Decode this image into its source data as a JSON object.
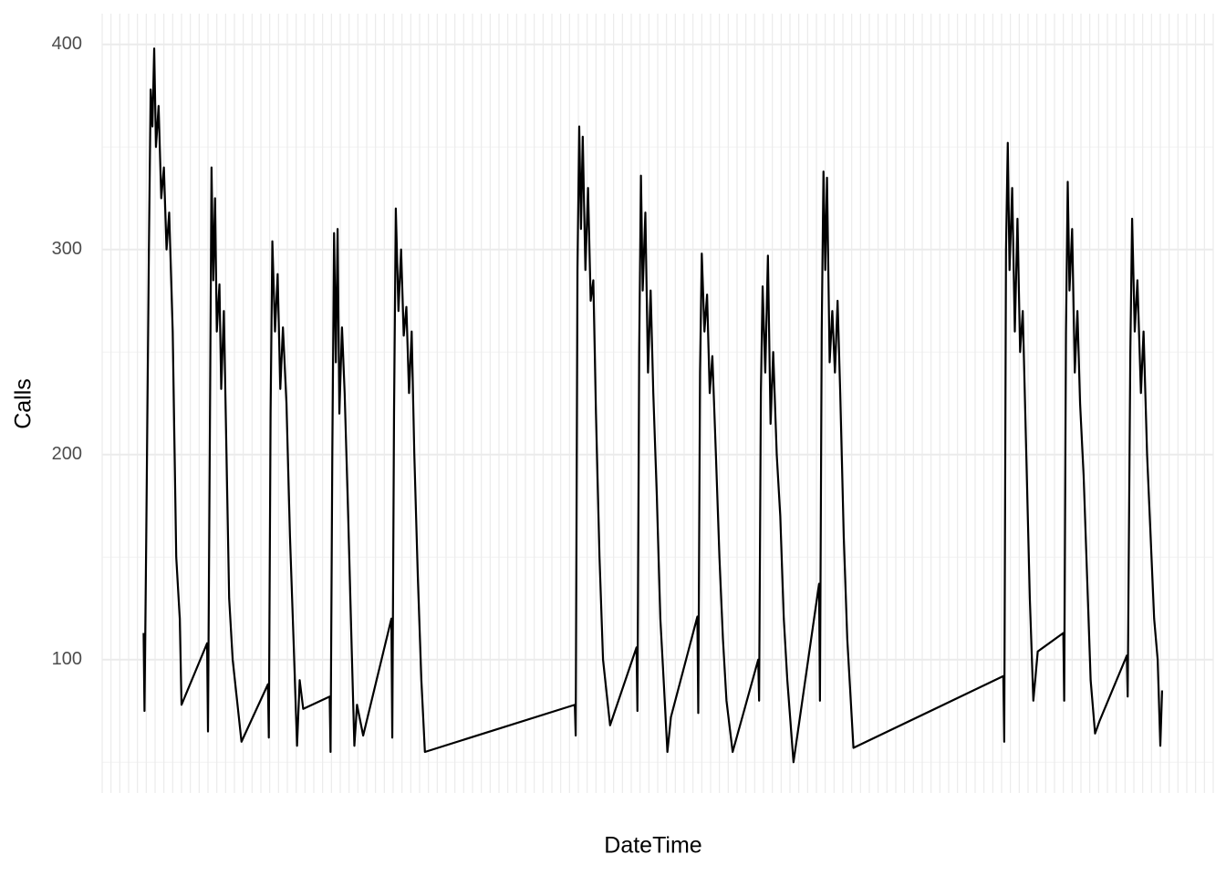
{
  "chart_data": {
    "type": "line",
    "xlabel": "DateTime",
    "ylabel": "Calls",
    "x": [
      4.7,
      4.8,
      5.0,
      5.3,
      5.5,
      5.7,
      5.9,
      6.1,
      6.4,
      6.7,
      7.0,
      7.3,
      7.6,
      8.0,
      8.4,
      8.8,
      9.0,
      11.9,
      12.0,
      12.2,
      12.4,
      12.6,
      12.8,
      13.0,
      13.3,
      13.5,
      13.8,
      14.1,
      14.4,
      14.8,
      15.8,
      18.8,
      18.9,
      19.1,
      19.3,
      19.6,
      19.9,
      20.2,
      20.5,
      20.9,
      21.3,
      21.7,
      22.1,
      22.4,
      22.8,
      25.8,
      25.9,
      26.1,
      26.3,
      26.5,
      26.7,
      26.9,
      27.2,
      27.5,
      27.9,
      28.3,
      28.6,
      28.9,
      29.6,
      32.8,
      32.9,
      33.1,
      33.3,
      33.6,
      33.9,
      34.2,
      34.5,
      34.8,
      35.1,
      35.4,
      35.8,
      36.2,
      36.6,
      53.6,
      53.7,
      53.9,
      54.1,
      54.3,
      54.5,
      54.8,
      55.1,
      55.4,
      55.7,
      56.0,
      56.4,
      56.8,
      57.6,
      60.6,
      60.7,
      60.9,
      61.1,
      61.3,
      61.6,
      61.9,
      62.2,
      62.5,
      62.9,
      63.3,
      63.7,
      64.1,
      64.5,
      67.5,
      67.6,
      67.8,
      68.0,
      68.3,
      68.6,
      68.9,
      69.2,
      69.6,
      70.0,
      70.4,
      70.8,
      71.5,
      74.4,
      74.5,
      74.7,
      74.9,
      75.2,
      75.5,
      75.8,
      76.1,
      76.5,
      76.9,
      77.3,
      77.7,
      78.4,
      81.3,
      81.4,
      81.6,
      81.8,
      82.0,
      82.2,
      82.5,
      82.8,
      83.1,
      83.4,
      83.7,
      84.1,
      84.5,
      85.2,
      102.2,
      102.3,
      102.5,
      102.7,
      102.9,
      103.2,
      103.5,
      103.8,
      104.1,
      104.4,
      104.8,
      105.2,
      105.6,
      106.1,
      109.0,
      109.1,
      109.3,
      109.5,
      109.7,
      110.0,
      110.3,
      110.6,
      110.9,
      111.3,
      111.7,
      112.1,
      112.6,
      113.1,
      116.2,
      116.3,
      116.6,
      116.8,
      117.1,
      117.4,
      117.8,
      118.1,
      118.5,
      118.9,
      119.3,
      119.7,
      120.0,
      120.2
    ],
    "values": [
      113,
      75,
      160,
      300,
      378,
      360,
      398,
      350,
      370,
      325,
      340,
      300,
      318,
      260,
      150,
      120,
      78,
      108,
      65,
      200,
      340,
      285,
      325,
      260,
      283,
      232,
      270,
      200,
      130,
      100,
      60,
      88,
      62,
      220,
      304,
      260,
      288,
      232,
      262,
      225,
      160,
      110,
      58,
      90,
      76,
      82,
      55,
      200,
      308,
      245,
      310,
      220,
      262,
      230,
      170,
      105,
      58,
      78,
      63,
      120,
      62,
      220,
      320,
      270,
      300,
      258,
      272,
      230,
      260,
      200,
      140,
      90,
      55,
      78,
      63,
      290,
      360,
      310,
      355,
      290,
      330,
      275,
      285,
      220,
      150,
      100,
      68,
      106,
      75,
      250,
      336,
      280,
      318,
      240,
      280,
      230,
      180,
      120,
      88,
      55,
      72,
      121,
      74,
      240,
      298,
      260,
      278,
      230,
      248,
      200,
      150,
      110,
      80,
      55,
      100,
      80,
      230,
      282,
      240,
      297,
      215,
      250,
      200,
      170,
      120,
      90,
      50,
      137,
      80,
      260,
      338,
      290,
      335,
      245,
      270,
      240,
      275,
      230,
      160,
      110,
      57,
      92,
      60,
      300,
      352,
      290,
      330,
      260,
      315,
      250,
      270,
      200,
      130,
      80,
      104,
      113,
      80,
      260,
      333,
      280,
      310,
      240,
      270,
      225,
      190,
      140,
      90,
      64,
      70,
      102,
      82,
      250,
      315,
      260,
      285,
      230,
      260,
      200,
      160,
      120,
      100,
      58,
      85
    ],
    "color": "#000000",
    "xlim": [
      0,
      126
    ],
    "xticks": [
      0,
      1,
      2,
      3,
      4,
      5,
      6,
      7,
      8,
      9,
      10,
      11,
      12,
      13,
      14,
      15,
      16,
      17,
      18,
      19,
      20,
      21,
      22,
      23,
      24,
      25,
      26,
      27,
      28,
      29,
      30,
      31,
      32,
      33,
      34,
      35,
      36,
      37,
      38,
      39,
      40,
      41,
      42,
      43,
      44,
      45,
      46,
      47,
      48,
      49,
      50,
      51,
      52,
      53,
      54,
      55,
      56,
      57,
      58,
      59,
      60,
      61,
      62,
      63,
      64,
      65,
      66,
      67,
      68,
      69,
      70,
      71,
      72,
      73,
      74,
      75,
      76,
      77,
      78,
      79,
      80,
      81,
      82,
      83,
      84,
      85,
      86,
      87,
      88,
      89,
      90,
      91,
      92,
      93,
      94,
      95,
      96,
      97,
      98,
      99,
      100,
      101,
      102,
      103,
      104,
      105,
      106,
      107,
      108,
      109,
      110,
      111,
      112,
      113,
      114,
      115,
      116,
      117,
      118,
      119,
      120,
      121,
      122,
      123,
      124,
      125,
      126
    ],
    "ylim": [
      35,
      415
    ],
    "yticks": [
      100,
      200,
      300,
      400
    ],
    "yminor": [
      50,
      150,
      250,
      350
    ],
    "grid": true
  }
}
